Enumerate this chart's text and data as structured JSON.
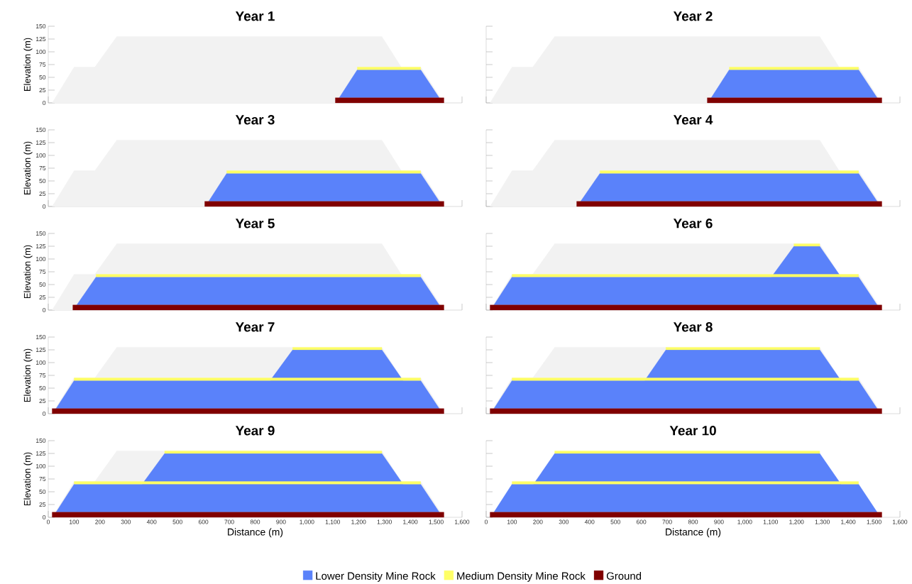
{
  "chart_data": [
    {
      "type": "area",
      "title": "Year 1",
      "ylabel": "Elevation (m)",
      "tick_labels": "y",
      "xlim": [
        0,
        1600
      ],
      "ylim": [
        0,
        150
      ],
      "xticks": [
        0,
        100,
        200,
        300,
        400,
        500,
        600,
        700,
        800,
        900,
        1000,
        1100,
        1200,
        1300,
        1400,
        1500,
        1600
      ],
      "yticks": [
        0,
        25,
        50,
        75,
        100,
        125,
        150
      ],
      "series": [
        {
          "color": "#f2f2f2",
          "x": [
            15,
            100,
            180,
            265,
            1290,
            1365,
            1440,
            1530
          ],
          "values": [
            0,
            70,
            70,
            130,
            130,
            70,
            70,
            0
          ]
        },
        {
          "color": "#5a82fa",
          "x": [
            1125,
            1195,
            1440,
            1512
          ],
          "values": [
            10,
            65,
            65,
            10
          ]
        },
        {
          "color": "#ffff66",
          "x": [
            1195,
            1195,
            1440,
            1440
          ],
          "values": [
            65,
            70,
            70,
            65
          ]
        },
        {
          "color": "#800000",
          "x": [
            1110,
            1110,
            1530,
            1530
          ],
          "values": [
            0,
            10,
            10,
            0
          ]
        }
      ]
    },
    {
      "type": "area",
      "title": "Year 2",
      "tick_labels": false,
      "xlim": [
        0,
        1600
      ],
      "ylim": [
        0,
        150
      ],
      "xticks": [
        0,
        100,
        200,
        300,
        400,
        500,
        600,
        700,
        800,
        900,
        1000,
        1100,
        1200,
        1300,
        1400,
        1500,
        1600
      ],
      "yticks": [
        0,
        25,
        50,
        75,
        100,
        125,
        150
      ],
      "series": [
        {
          "color": "#f2f2f2",
          "x": [
            15,
            100,
            180,
            265,
            1290,
            1365,
            1440,
            1530
          ],
          "values": [
            0,
            70,
            70,
            130,
            130,
            70,
            70,
            0
          ]
        },
        {
          "color": "#5a82fa",
          "x": [
            870,
            940,
            1440,
            1512
          ],
          "values": [
            10,
            65,
            65,
            10
          ]
        },
        {
          "color": "#ffff66",
          "x": [
            940,
            940,
            1440,
            1440
          ],
          "values": [
            65,
            70,
            70,
            65
          ]
        },
        {
          "color": "#800000",
          "x": [
            855,
            855,
            1530,
            1530
          ],
          "values": [
            0,
            10,
            10,
            0
          ]
        }
      ]
    },
    {
      "type": "area",
      "title": "Year 3",
      "ylabel": "Elevation (m)",
      "tick_labels": "y",
      "xlim": [
        0,
        1600
      ],
      "ylim": [
        0,
        150
      ],
      "xticks": [
        0,
        100,
        200,
        300,
        400,
        500,
        600,
        700,
        800,
        900,
        1000,
        1100,
        1200,
        1300,
        1400,
        1500,
        1600
      ],
      "yticks": [
        0,
        25,
        50,
        75,
        100,
        125,
        150
      ],
      "series": [
        {
          "color": "#f2f2f2",
          "x": [
            15,
            100,
            180,
            265,
            1290,
            1365,
            1440,
            1530
          ],
          "values": [
            0,
            70,
            70,
            130,
            130,
            70,
            70,
            0
          ]
        },
        {
          "color": "#5a82fa",
          "x": [
            620,
            690,
            1440,
            1512
          ],
          "values": [
            10,
            65,
            65,
            10
          ]
        },
        {
          "color": "#ffff66",
          "x": [
            690,
            690,
            1440,
            1440
          ],
          "values": [
            65,
            70,
            70,
            65
          ]
        },
        {
          "color": "#800000",
          "x": [
            605,
            605,
            1530,
            1530
          ],
          "values": [
            0,
            10,
            10,
            0
          ]
        }
      ]
    },
    {
      "type": "area",
      "title": "Year 4",
      "tick_labels": false,
      "xlim": [
        0,
        1600
      ],
      "ylim": [
        0,
        150
      ],
      "xticks": [
        0,
        100,
        200,
        300,
        400,
        500,
        600,
        700,
        800,
        900,
        1000,
        1100,
        1200,
        1300,
        1400,
        1500,
        1600
      ],
      "yticks": [
        0,
        25,
        50,
        75,
        100,
        125,
        150
      ],
      "series": [
        {
          "color": "#f2f2f2",
          "x": [
            15,
            100,
            180,
            265,
            1290,
            1365,
            1440,
            1530
          ],
          "values": [
            0,
            70,
            70,
            130,
            130,
            70,
            70,
            0
          ]
        },
        {
          "color": "#5a82fa",
          "x": [
            365,
            440,
            1440,
            1512
          ],
          "values": [
            10,
            65,
            65,
            10
          ]
        },
        {
          "color": "#ffff66",
          "x": [
            440,
            440,
            1440,
            1440
          ],
          "values": [
            65,
            70,
            70,
            65
          ]
        },
        {
          "color": "#800000",
          "x": [
            350,
            350,
            1530,
            1530
          ],
          "values": [
            0,
            10,
            10,
            0
          ]
        }
      ]
    },
    {
      "type": "area",
      "title": "Year 5",
      "ylabel": "Elevation (m)",
      "tick_labels": "y",
      "xlim": [
        0,
        1600
      ],
      "ylim": [
        0,
        150
      ],
      "xticks": [
        0,
        100,
        200,
        300,
        400,
        500,
        600,
        700,
        800,
        900,
        1000,
        1100,
        1200,
        1300,
        1400,
        1500,
        1600
      ],
      "yticks": [
        0,
        25,
        50,
        75,
        100,
        125,
        150
      ],
      "series": [
        {
          "color": "#f2f2f2",
          "x": [
            15,
            100,
            180,
            265,
            1290,
            1365,
            1440,
            1530
          ],
          "values": [
            0,
            70,
            70,
            130,
            130,
            70,
            70,
            0
          ]
        },
        {
          "color": "#5a82fa",
          "x": [
            110,
            185,
            1440,
            1512
          ],
          "values": [
            10,
            65,
            65,
            10
          ]
        },
        {
          "color": "#ffff66",
          "x": [
            185,
            185,
            1440,
            1440
          ],
          "values": [
            65,
            70,
            70,
            65
          ]
        },
        {
          "color": "#800000",
          "x": [
            95,
            95,
            1530,
            1530
          ],
          "values": [
            0,
            10,
            10,
            0
          ]
        }
      ]
    },
    {
      "type": "area",
      "title": "Year 6",
      "tick_labels": false,
      "xlim": [
        0,
        1600
      ],
      "ylim": [
        0,
        150
      ],
      "xticks": [
        0,
        100,
        200,
        300,
        400,
        500,
        600,
        700,
        800,
        900,
        1000,
        1100,
        1200,
        1300,
        1400,
        1500,
        1600
      ],
      "yticks": [
        0,
        25,
        50,
        75,
        100,
        125,
        150
      ],
      "series": [
        {
          "color": "#f2f2f2",
          "x": [
            15,
            100,
            180,
            265,
            1290,
            1365,
            1440,
            1530
          ],
          "values": [
            0,
            70,
            70,
            130,
            130,
            70,
            70,
            0
          ]
        },
        {
          "color": "#5a82fa",
          "x": [
            30,
            100,
            1103,
            1190,
            1290,
            1372,
            1440,
            1512
          ],
          "values": [
            10,
            65,
            65,
            125,
            125,
            65,
            65,
            10
          ]
        },
        {
          "color": "#ffff66",
          "x": [
            100,
            100,
            1440,
            1440
          ],
          "values": [
            65,
            70,
            70,
            65
          ]
        },
        {
          "color": "#800000",
          "x": [
            15,
            15,
            1530,
            1530
          ],
          "values": [
            0,
            10,
            10,
            0
          ]
        },
        {
          "color": "#ffff66",
          "x": [
            1190,
            1190,
            1290,
            1290
          ],
          "values": [
            125,
            130,
            130,
            125
          ]
        }
      ]
    },
    {
      "type": "area",
      "title": "Year 7",
      "ylabel": "Elevation (m)",
      "tick_labels": "y",
      "xlim": [
        0,
        1600
      ],
      "ylim": [
        0,
        150
      ],
      "xticks": [
        0,
        100,
        200,
        300,
        400,
        500,
        600,
        700,
        800,
        900,
        1000,
        1100,
        1200,
        1300,
        1400,
        1500,
        1600
      ],
      "yticks": [
        0,
        25,
        50,
        75,
        100,
        125,
        150
      ],
      "series": [
        {
          "color": "#f2f2f2",
          "x": [
            15,
            100,
            180,
            265,
            1290,
            1365,
            1440,
            1530
          ],
          "values": [
            0,
            70,
            70,
            130,
            130,
            70,
            70,
            0
          ]
        },
        {
          "color": "#5a82fa",
          "x": [
            30,
            100,
            858,
            945,
            1290,
            1372,
            1440,
            1512
          ],
          "values": [
            10,
            65,
            65,
            125,
            125,
            65,
            65,
            10
          ]
        },
        {
          "color": "#ffff66",
          "x": [
            100,
            100,
            1440,
            1440
          ],
          "values": [
            65,
            70,
            70,
            65
          ]
        },
        {
          "color": "#800000",
          "x": [
            15,
            15,
            1530,
            1530
          ],
          "values": [
            0,
            10,
            10,
            0
          ]
        },
        {
          "color": "#ffff66",
          "x": [
            945,
            945,
            1290,
            1290
          ],
          "values": [
            125,
            130,
            130,
            125
          ]
        }
      ]
    },
    {
      "type": "area",
      "title": "Year 8",
      "tick_labels": false,
      "xlim": [
        0,
        1600
      ],
      "ylim": [
        0,
        150
      ],
      "xticks": [
        0,
        100,
        200,
        300,
        400,
        500,
        600,
        700,
        800,
        900,
        1000,
        1100,
        1200,
        1300,
        1400,
        1500,
        1600
      ],
      "yticks": [
        0,
        25,
        50,
        75,
        100,
        125,
        150
      ],
      "series": [
        {
          "color": "#f2f2f2",
          "x": [
            15,
            100,
            180,
            265,
            1290,
            1365,
            1440,
            1530
          ],
          "values": [
            0,
            70,
            70,
            130,
            130,
            70,
            70,
            0
          ]
        },
        {
          "color": "#5a82fa",
          "x": [
            30,
            100,
            613,
            695,
            1290,
            1372,
            1440,
            1512
          ],
          "values": [
            10,
            65,
            65,
            125,
            125,
            65,
            65,
            10
          ]
        },
        {
          "color": "#ffff66",
          "x": [
            100,
            100,
            1440,
            1440
          ],
          "values": [
            65,
            70,
            70,
            65
          ]
        },
        {
          "color": "#800000",
          "x": [
            15,
            15,
            1530,
            1530
          ],
          "values": [
            0,
            10,
            10,
            0
          ]
        },
        {
          "color": "#ffff66",
          "x": [
            695,
            695,
            1290,
            1290
          ],
          "values": [
            125,
            130,
            130,
            125
          ]
        }
      ]
    },
    {
      "type": "area",
      "title": "Year 9",
      "ylabel": "Elevation (m)",
      "xlabel": "Distance (m)",
      "xlim": [
        0,
        1600
      ],
      "ylim": [
        0,
        150
      ],
      "xticks": [
        0,
        100,
        200,
        300,
        400,
        500,
        600,
        700,
        800,
        900,
        {
          "value": 1000,
          "label": "1,000"
        },
        {
          "value": 1100,
          "label": "1,100"
        },
        {
          "value": 1200,
          "label": "1,200"
        },
        {
          "value": 1300,
          "label": "1,300"
        },
        {
          "value": 1400,
          "label": "1,400"
        },
        {
          "value": 1500,
          "label": "1,500"
        },
        {
          "value": 1600,
          "label": "1,600"
        }
      ],
      "yticks": [
        0,
        25,
        50,
        75,
        100,
        125,
        150
      ],
      "series": [
        {
          "color": "#f2f2f2",
          "x": [
            15,
            100,
            180,
            265,
            1290,
            1365,
            1440,
            1530
          ],
          "values": [
            0,
            70,
            70,
            130,
            130,
            70,
            70,
            0
          ]
        },
        {
          "color": "#5a82fa",
          "x": [
            30,
            100,
            363,
            450,
            1290,
            1372,
            1440,
            1512
          ],
          "values": [
            10,
            65,
            65,
            125,
            125,
            65,
            65,
            10
          ]
        },
        {
          "color": "#ffff66",
          "x": [
            100,
            100,
            1440,
            1440
          ],
          "values": [
            65,
            70,
            70,
            65
          ]
        },
        {
          "color": "#800000",
          "x": [
            15,
            15,
            1530,
            1530
          ],
          "values": [
            0,
            10,
            10,
            0
          ]
        },
        {
          "color": "#ffff66",
          "x": [
            450,
            450,
            1290,
            1290
          ],
          "values": [
            125,
            130,
            130,
            125
          ]
        }
      ]
    },
    {
      "type": "area",
      "title": "Year 10",
      "xlabel": "Distance (m)",
      "tick_labels": "x",
      "legend": "bottom",
      "xlim": [
        0,
        1600
      ],
      "ylim": [
        0,
        150
      ],
      "xticks": [
        0,
        100,
        200,
        300,
        400,
        500,
        600,
        700,
        800,
        900,
        {
          "value": 1000,
          "label": "1,000"
        },
        {
          "value": 1100,
          "label": "1,100"
        },
        {
          "value": 1200,
          "label": "1,200"
        },
        {
          "value": 1300,
          "label": "1,300"
        },
        {
          "value": 1400,
          "label": "1,400"
        },
        {
          "value": 1500,
          "label": "1,500"
        },
        {
          "value": 1600,
          "label": "1,600"
        }
      ],
      "yticks": [
        0,
        25,
        50,
        75,
        100,
        125,
        150
      ],
      "series": [
        {
          "name": "Lower Density Mine Rock",
          "color": "#5a82fa",
          "x": [
            30,
            100,
            183,
            265,
            1290,
            1372,
            1440,
            1512
          ],
          "values": [
            10,
            65,
            65,
            125,
            125,
            65,
            65,
            10
          ]
        },
        {
          "name": "Medium Density Mine Rock",
          "color": "#ffff66",
          "x": [
            100,
            100,
            1440,
            1440
          ],
          "values": [
            65,
            70,
            70,
            65
          ]
        },
        {
          "name": "Ground",
          "color": "#800000",
          "x": [
            15,
            15,
            1530,
            1530
          ],
          "values": [
            0,
            10,
            10,
            0
          ]
        },
        {
          "color": "#ffff66",
          "x": [
            265,
            265,
            1290,
            1290
          ],
          "values": [
            125,
            130,
            130,
            125
          ]
        }
      ]
    }
  ]
}
